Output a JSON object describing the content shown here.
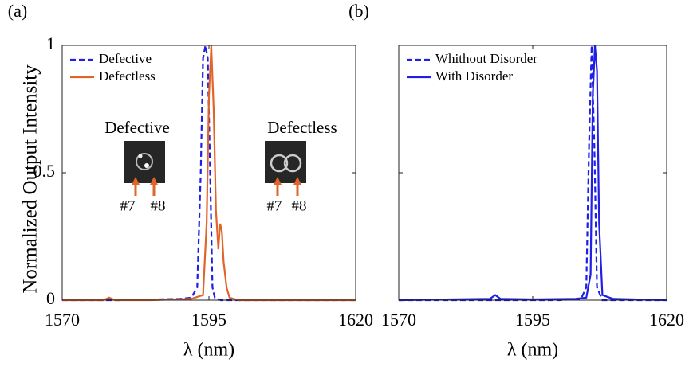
{
  "chart_data": [
    {
      "type": "line",
      "panel_label": "(a)",
      "ylabel": "Normalized Output Intensity",
      "xlabel": "λ (nm)",
      "xlim": [
        1570,
        1620
      ],
      "xticks": [
        1570,
        1595,
        1620
      ],
      "ylim": [
        0,
        1
      ],
      "yticks": [
        0,
        0.5,
        1
      ],
      "show_ytick_labels": true,
      "legend": "upper-left",
      "series": [
        {
          "name": "Defective",
          "color": "#1f1fe6",
          "dash": true,
          "x": [
            1570,
            1580,
            1590,
            1592,
            1593,
            1593.6,
            1594,
            1594.4,
            1594.8,
            1595.2,
            1595.6,
            1596,
            1597,
            1600,
            1610,
            1620
          ],
          "values": [
            0,
            0,
            0.005,
            0.01,
            0.05,
            0.5,
            0.95,
            1,
            0.95,
            0.5,
            0.05,
            0.01,
            0,
            0,
            0,
            0
          ]
        },
        {
          "name": "Defectless",
          "color": "#e0652a",
          "dash": false,
          "x": [
            1570,
            1577,
            1578,
            1579,
            1585,
            1592,
            1594,
            1594.6,
            1595,
            1595.4,
            1595.8,
            1596.2,
            1596.6,
            1596.9,
            1597.2,
            1597.5,
            1598,
            1598.5,
            1600,
            1610,
            1620
          ],
          "values": [
            0,
            0,
            0.01,
            0,
            0,
            0.005,
            0.02,
            0.3,
            0.8,
            1,
            0.75,
            0.35,
            0.2,
            0.3,
            0.27,
            0.15,
            0.05,
            0.01,
            0,
            0,
            0
          ]
        }
      ],
      "insets": [
        {
          "title": "Defective",
          "labels": [
            "#7",
            "#8"
          ]
        },
        {
          "title": "Defectless",
          "labels": [
            "#7",
            "#8"
          ]
        }
      ]
    },
    {
      "type": "line",
      "panel_label": "(b)",
      "xlabel": "λ (nm)",
      "xlim": [
        1570,
        1620
      ],
      "xticks": [
        1570,
        1595,
        1620
      ],
      "ylim": [
        0,
        1
      ],
      "yticks": [
        0,
        0.5,
        1
      ],
      "show_ytick_labels": false,
      "legend": "upper-left",
      "series": [
        {
          "name": "Whithout Disorder",
          "color": "#1f1fe6",
          "dash": true,
          "x": [
            1570,
            1600,
            1604,
            1605,
            1605.5,
            1606,
            1606.5,
            1607,
            1608,
            1620
          ],
          "values": [
            0,
            0,
            0.005,
            0.05,
            0.6,
            1,
            0.6,
            0.05,
            0,
            0
          ]
        },
        {
          "name": "With Disorder",
          "color": "#1f1fe6",
          "dash": false,
          "x": [
            1570,
            1580,
            1587,
            1588,
            1589,
            1595,
            1603,
            1605,
            1605.8,
            1606.2,
            1606.6,
            1607,
            1607.4,
            1608,
            1610,
            1620
          ],
          "values": [
            0,
            0.003,
            0.005,
            0.02,
            0.005,
            0.003,
            0.005,
            0.01,
            0.1,
            0.8,
            1,
            0.9,
            0.3,
            0.02,
            0.005,
            0
          ]
        }
      ]
    }
  ]
}
